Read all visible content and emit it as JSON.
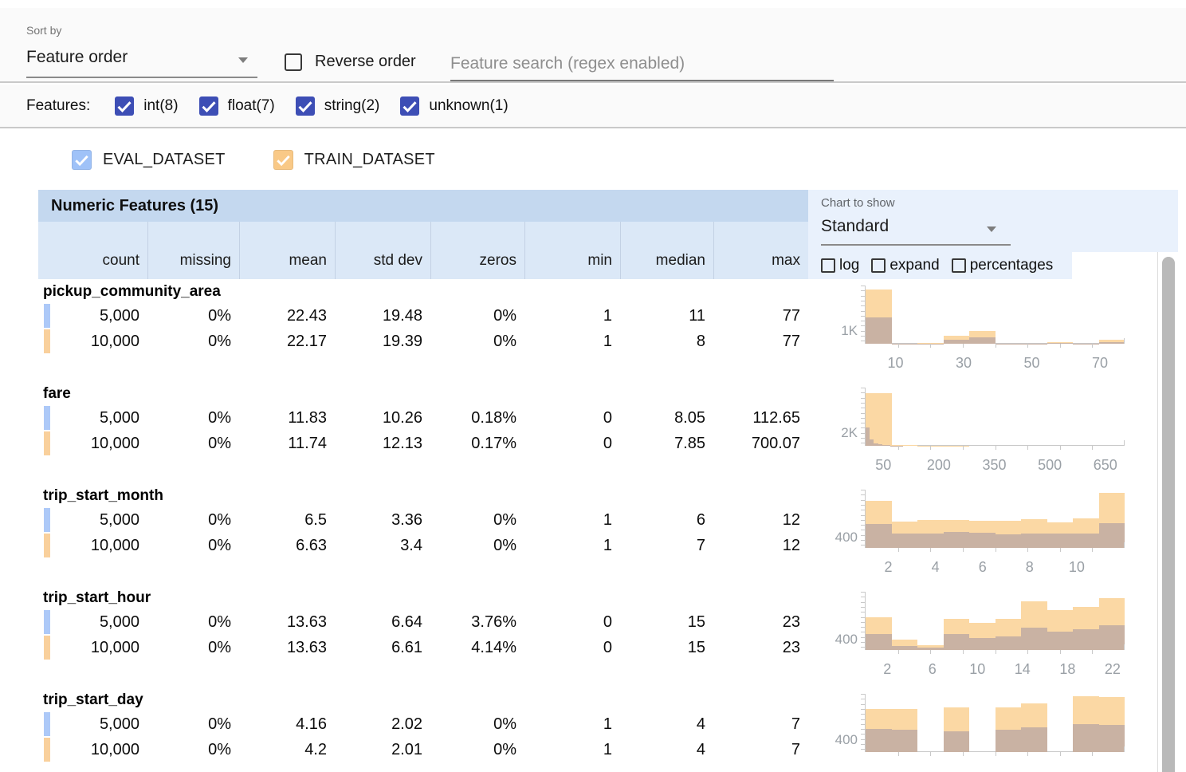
{
  "toolbar": {
    "sort_by_label": "Sort by",
    "sort_value": "Feature order",
    "reverse_label": "Reverse order",
    "search_placeholder": "Feature search (regex enabled)"
  },
  "filters": {
    "label": "Features:",
    "types": [
      {
        "label": "int(8)",
        "checked": true
      },
      {
        "label": "float(7)",
        "checked": true
      },
      {
        "label": "string(2)",
        "checked": true
      },
      {
        "label": "unknown(1)",
        "checked": true
      }
    ],
    "checkbox_color": "#3d4eb5"
  },
  "datasets": [
    {
      "name": "EVAL_DATASET",
      "color": "#9fc2f8",
      "swatch_color": "#adc9f8",
      "checked": true
    },
    {
      "name": "TRAIN_DATASET",
      "color": "#f9c987",
      "swatch_color": "#f9d09c",
      "checked": true
    }
  ],
  "table": {
    "title": "Numeric Features (15)",
    "columns": [
      "count",
      "missing",
      "mean",
      "std dev",
      "zeros",
      "min",
      "median",
      "max"
    ],
    "features": [
      {
        "name": "pickup_community_area",
        "rows": [
          {
            "dataset": "eval",
            "values": [
              "5,000",
              "0%",
              "22.43",
              "19.48",
              "0%",
              "1",
              "11",
              "77"
            ]
          },
          {
            "dataset": "train",
            "values": [
              "10,000",
              "0%",
              "22.17",
              "19.39",
              "0%",
              "1",
              "8",
              "77"
            ]
          }
        ]
      },
      {
        "name": "fare",
        "rows": [
          {
            "dataset": "eval",
            "values": [
              "5,000",
              "0%",
              "11.83",
              "10.26",
              "0.18%",
              "0",
              "8.05",
              "112.65"
            ]
          },
          {
            "dataset": "train",
            "values": [
              "10,000",
              "0%",
              "11.74",
              "12.13",
              "0.17%",
              "0",
              "7.85",
              "700.07"
            ]
          }
        ]
      },
      {
        "name": "trip_start_month",
        "rows": [
          {
            "dataset": "eval",
            "values": [
              "5,000",
              "0%",
              "6.5",
              "3.36",
              "0%",
              "1",
              "6",
              "12"
            ]
          },
          {
            "dataset": "train",
            "values": [
              "10,000",
              "0%",
              "6.63",
              "3.4",
              "0%",
              "1",
              "7",
              "12"
            ]
          }
        ]
      },
      {
        "name": "trip_start_hour",
        "rows": [
          {
            "dataset": "eval",
            "values": [
              "5,000",
              "0%",
              "13.63",
              "6.64",
              "3.76%",
              "0",
              "15",
              "23"
            ]
          },
          {
            "dataset": "train",
            "values": [
              "10,000",
              "0%",
              "13.63",
              "6.61",
              "4.14%",
              "0",
              "15",
              "23"
            ]
          }
        ]
      },
      {
        "name": "trip_start_day",
        "rows": [
          {
            "dataset": "eval",
            "values": [
              "5,000",
              "0%",
              "4.16",
              "2.02",
              "0%",
              "1",
              "4",
              "7"
            ]
          },
          {
            "dataset": "train",
            "values": [
              "10,000",
              "0%",
              "4.2",
              "2.01",
              "0%",
              "1",
              "4",
              "7"
            ]
          }
        ]
      }
    ]
  },
  "chart_controls": {
    "label": "Chart to show",
    "value": "Standard",
    "options": [
      {
        "label": "log",
        "checked": false
      },
      {
        "label": "expand",
        "checked": false
      },
      {
        "label": "percentages",
        "checked": false
      }
    ]
  },
  "chart_data": [
    {
      "type": "bar",
      "feature": "pickup_community_area",
      "y_axis_label": "1K",
      "y_axis_value": 1000,
      "ymax": 4300,
      "x_range": [
        1,
        77
      ],
      "x_ticks": [
        10,
        30,
        50,
        70
      ],
      "series": [
        {
          "name": "TRAIN_DATASET",
          "color": "#fbd8a4",
          "bin_range": [
            1,
            77
          ],
          "values": [
            4000,
            20,
            50,
            560,
            950,
            25,
            20,
            90,
            10,
            280
          ]
        },
        {
          "name": "EVAL_DATASET",
          "color": "#c9b2a3",
          "bin_range": [
            1,
            77
          ],
          "values": [
            1950,
            8,
            20,
            280,
            500,
            10,
            8,
            35,
            5,
            130
          ]
        }
      ]
    },
    {
      "type": "bar",
      "feature": "fare",
      "y_axis_label": "2K",
      "y_axis_value": 2000,
      "ymax": 8600,
      "x_range": [
        0,
        700.07
      ],
      "x_ticks": [
        50,
        200,
        350,
        500,
        650
      ],
      "series": [
        {
          "name": "TRAIN_DATASET",
          "color": "#fbd8a4",
          "bin_range": [
            0,
            700.07
          ],
          "values": [
            7800,
            150,
            25,
            10,
            5,
            3,
            2,
            2,
            1,
            3
          ]
        },
        {
          "name": "EVAL_DATASET",
          "color": "#c9b2a3",
          "bin_range": [
            0,
            112.65
          ],
          "values": [
            2700,
            900,
            400,
            250,
            150,
            90,
            50,
            30,
            15,
            8
          ]
        }
      ]
    },
    {
      "type": "bar",
      "feature": "trip_start_month",
      "y_axis_label": "400",
      "y_axis_value": 400,
      "ymax": 2100,
      "x_range": [
        1,
        12
      ],
      "x_ticks": [
        2,
        4,
        6,
        8,
        10
      ],
      "series": [
        {
          "name": "TRAIN_DATASET",
          "color": "#fbd8a4",
          "bin_range": [
            1,
            12
          ],
          "values": [
            1700,
            950,
            1000,
            1000,
            975,
            975,
            1030,
            925,
            1070,
            1975
          ]
        },
        {
          "name": "EVAL_DATASET",
          "color": "#c9b2a3",
          "bin_range": [
            1,
            12
          ],
          "values": [
            860,
            510,
            515,
            565,
            535,
            490,
            515,
            515,
            515,
            885
          ]
        }
      ]
    },
    {
      "type": "bar",
      "feature": "trip_start_hour",
      "y_axis_label": "400",
      "y_axis_value": 400,
      "ymax": 2100,
      "x_range": [
        0,
        23
      ],
      "x_ticks": [
        2,
        6,
        10,
        14,
        18,
        22
      ],
      "series": [
        {
          "name": "TRAIN_DATASET",
          "color": "#fbd8a4",
          "bin_range": [
            0,
            23
          ],
          "values": [
            1180,
            370,
            175,
            1130,
            975,
            1120,
            1765,
            1425,
            1540,
            1880
          ]
        },
        {
          "name": "EVAL_DATASET",
          "color": "#c9b2a3",
          "bin_range": [
            0,
            23
          ],
          "values": [
            585,
            145,
            80,
            565,
            420,
            490,
            810,
            665,
            740,
            905
          ]
        }
      ]
    },
    {
      "type": "bar",
      "feature": "trip_start_day",
      "y_axis_label": "400",
      "y_axis_value": 400,
      "ymax": 1800,
      "x_range": [
        1,
        7
      ],
      "x_ticks": [],
      "series": [
        {
          "name": "TRAIN_DATASET",
          "color": "#fbd8a4",
          "bin_range": [
            1,
            7
          ],
          "values": [
            1320,
            1320,
            0,
            1375,
            0,
            1385,
            1510,
            0,
            1715,
            1690
          ]
        },
        {
          "name": "EVAL_DATASET",
          "color": "#c9b2a3",
          "bin_range": [
            1,
            7
          ],
          "values": [
            710,
            690,
            0,
            635,
            0,
            690,
            775,
            0,
            875,
            835
          ]
        }
      ]
    }
  ]
}
